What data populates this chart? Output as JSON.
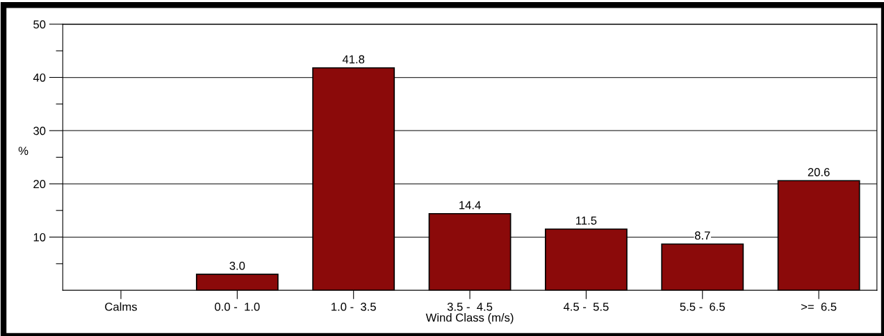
{
  "chart_data": {
    "type": "bar",
    "xlabel": "Wind Class (m/s)",
    "ylabel": "%",
    "categories": [
      "Calms",
      "0.0 -  1.0",
      "1.0 -  3.5",
      "3.5 -  4.5",
      "4.5 -  5.5",
      "5.5 -  6.5",
      ">=  6.5"
    ],
    "values": [
      null,
      3.0,
      41.8,
      14.4,
      11.5,
      8.7,
      20.6
    ],
    "value_labels": [
      null,
      "3.0",
      "41.8",
      "14.4",
      "11.5",
      "8.7",
      "20.6"
    ],
    "color": "#8b0a0a",
    "ylim": [
      0,
      50
    ],
    "yticks": [
      {
        "value": 5,
        "label": null
      },
      10,
      {
        "value": 15,
        "label": null
      },
      20,
      {
        "value": 25,
        "label": null
      },
      30,
      {
        "value": 35,
        "label": null
      },
      40,
      {
        "value": 45,
        "label": null
      },
      50
    ],
    "grid": "y",
    "legend": false
  }
}
